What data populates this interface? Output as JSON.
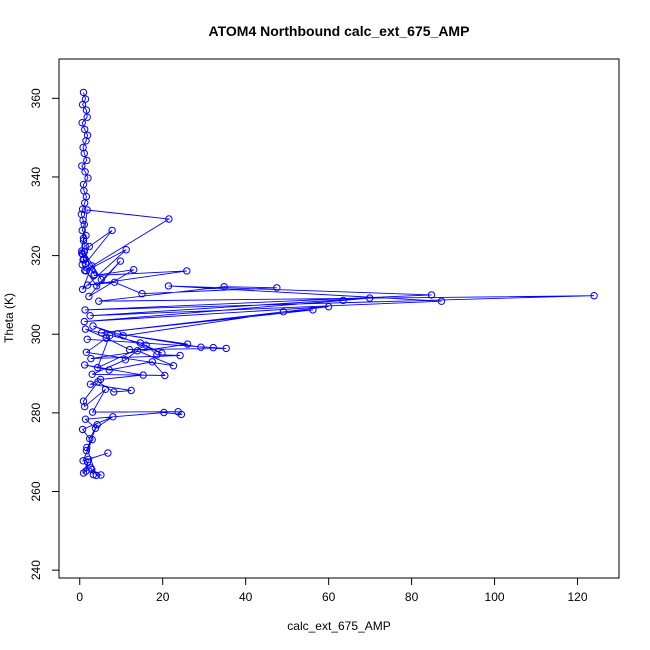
{
  "chart_data": {
    "type": "scatter",
    "title": "ATOM4 Northbound calc_ext_675_AMP",
    "xlabel": "calc_ext_675_AMP",
    "ylabel": "Theta (K)",
    "xlim": [
      -5,
      130
    ],
    "ylim": [
      238,
      370
    ],
    "xticks": [
      0,
      20,
      40,
      60,
      80,
      100,
      120
    ],
    "yticks": [
      240,
      260,
      280,
      300,
      320,
      340,
      360
    ],
    "grid": false,
    "legend": "none",
    "color": "#0000ff",
    "marker": "open-circle",
    "connected": true,
    "x": [
      0.9,
      1.4,
      0.7,
      1.6,
      1.8,
      0.6,
      1.2,
      1.9,
      1.5,
      0.8,
      1.1,
      1.7,
      0.5,
      1.3,
      2.0,
      0.9,
      1.0,
      1.6,
      1.2,
      0.7,
      0.4,
      0.8,
      1.1,
      0.6,
      1.5,
      0.9,
      1.3,
      0.5,
      0.7,
      1.0,
      0.6,
      1.2,
      21.5,
      1.8,
      0.9,
      0.5,
      1.4,
      7.8,
      2.3,
      0.8,
      3.5,
      1.1,
      5.2,
      2.9,
      0.7,
      11.2,
      1.5,
      4.1,
      9.8,
      2.2,
      13.0,
      3.4,
      25.8,
      1.9,
      8.4,
      15.0,
      47.5,
      34.8,
      4.6,
      124.0,
      1.3,
      84.8,
      21.4,
      87.2,
      2.5,
      69.9,
      63.5,
      1.1,
      60.0,
      5.3,
      56.2,
      49.1,
      10.5,
      3.2,
      19.8,
      14.6,
      1.4,
      6.4,
      12.0,
      35.3,
      1.8,
      32.2,
      29.2,
      9.1,
      26.0,
      2.7,
      24.2,
      18.6,
      16.0,
      4.3,
      7.2,
      1.6,
      22.6,
      13.9,
      11.0,
      3.0,
      20.5,
      17.5,
      7.1,
      1.2,
      15.3,
      5.0,
      2.6,
      12.4,
      8.2,
      4.4,
      0.9,
      1.2,
      6.2,
      3.1,
      23.7,
      24.5,
      20.3,
      1.4,
      3.8,
      8.0,
      0.7,
      2.4,
      4.2,
      1.6,
      3.0,
      0.8,
      6.8,
      2.1,
      1.5,
      1.9,
      0.9,
      2.7,
      3.3,
      2.9,
      5.1,
      4.0,
      1.7
    ],
    "y": [
      361.5,
      359.8,
      358.4,
      357.0,
      355.2,
      353.8,
      352.1,
      350.6,
      349.2,
      347.5,
      346.0,
      344.2,
      342.8,
      341.3,
      339.7,
      338.1,
      336.5,
      335.0,
      333.4,
      331.8,
      330.5,
      329.0,
      327.9,
      326.4,
      325.1,
      323.8,
      322.5,
      321.2,
      320.3,
      319.0,
      317.7,
      316.2,
      329.3,
      331.6,
      324.4,
      320.6,
      318.0,
      326.4,
      322.3,
      318.9,
      315.2,
      321.0,
      313.9,
      317.4,
      311.4,
      321.5,
      316.1,
      312.3,
      318.6,
      309.6,
      316.4,
      314.9,
      316.1,
      312.5,
      313.2,
      310.3,
      311.8,
      312.1,
      308.4,
      309.8,
      306.2,
      310.0,
      312.3,
      308.4,
      304.7,
      309.2,
      308.6,
      303.2,
      307.0,
      300.4,
      306.2,
      305.7,
      299.6,
      302.1,
      295.2,
      297.8,
      301.3,
      299.0,
      296.1,
      296.4,
      298.7,
      296.6,
      296.7,
      300.1,
      297.5,
      293.8,
      294.6,
      294.8,
      297.2,
      291.5,
      299.6,
      295.4,
      292.0,
      295.8,
      293.5,
      289.8,
      289.5,
      293.0,
      290.9,
      292.2,
      289.6,
      288.5,
      287.3,
      285.7,
      285.3,
      287.9,
      283.0,
      281.6,
      286.0,
      280.2,
      280.3,
      279.6,
      280.1,
      278.4,
      276.1,
      279.0,
      275.8,
      273.4,
      277.0,
      270.4,
      273.2,
      267.8,
      269.8,
      268.2,
      265.2,
      267.5,
      264.7,
      266.0,
      264.3,
      265.6,
      264.2,
      264.1,
      271.2
    ]
  }
}
